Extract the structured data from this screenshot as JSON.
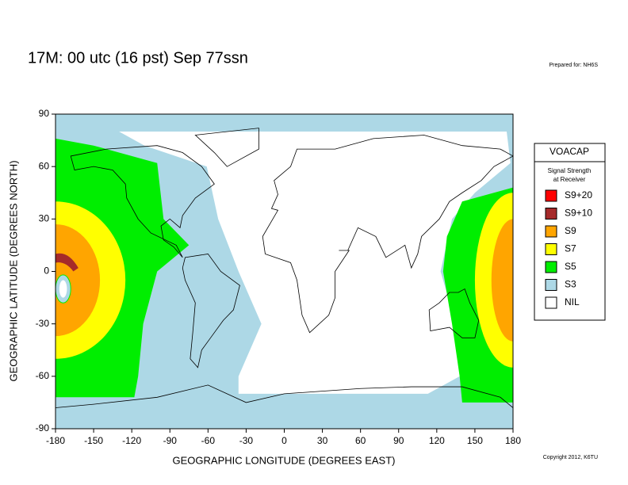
{
  "chart_data": {
    "type": "map",
    "title": "17M:  00 utc (16 pst) Sep 77ssn",
    "note": "Prepared for: NH6S",
    "copyright": "Copyright 2012, K6TU",
    "xlabel": "GEOGRAPHIC LONGITUDE (DEGREES EAST)",
    "ylabel": "GEOGRAPHIC LATITUDE (DEGREES NORTH)",
    "xlim": [
      -180,
      180
    ],
    "ylim": [
      -90,
      90
    ],
    "xticks": [
      -180,
      -150,
      -120,
      -90,
      -60,
      -30,
      0,
      30,
      60,
      90,
      120,
      150,
      180
    ],
    "yticks": [
      -90,
      -60,
      -30,
      0,
      30,
      60,
      90
    ],
    "legend_title": "VOACAP",
    "legend_subtitle": [
      "Signal Strength",
      "at Receiver"
    ],
    "legend": [
      {
        "name": "S9+20",
        "color": "#ff0000"
      },
      {
        "name": "S9+10",
        "color": "#a52a2a"
      },
      {
        "name": "S9",
        "color": "#ffa500"
      },
      {
        "name": "S7",
        "color": "#ffff00"
      },
      {
        "name": "S5",
        "color": "#00ee00"
      },
      {
        "name": "S3",
        "color": "#add8e6"
      },
      {
        "name": "NIL",
        "color": "#ffffff"
      }
    ]
  }
}
